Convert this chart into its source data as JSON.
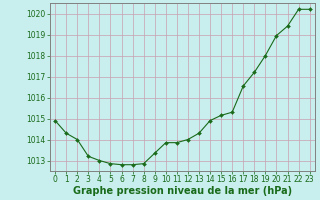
{
  "x": [
    0,
    1,
    2,
    3,
    4,
    5,
    6,
    7,
    8,
    9,
    10,
    11,
    12,
    13,
    14,
    15,
    16,
    17,
    18,
    19,
    20,
    21,
    22,
    23
  ],
  "y": [
    1014.9,
    1014.3,
    1014.0,
    1013.2,
    1013.0,
    1012.85,
    1012.8,
    1012.8,
    1012.85,
    1013.35,
    1013.85,
    1013.85,
    1014.0,
    1014.3,
    1014.9,
    1015.15,
    1015.3,
    1016.55,
    1017.2,
    1018.0,
    1018.95,
    1019.4,
    1020.2,
    1020.2
  ],
  "ylim": [
    1012.5,
    1020.5
  ],
  "xlim": [
    -0.5,
    23.5
  ],
  "yticks": [
    1013,
    1014,
    1015,
    1016,
    1017,
    1018,
    1019,
    1020
  ],
  "xticks": [
    0,
    1,
    2,
    3,
    4,
    5,
    6,
    7,
    8,
    9,
    10,
    11,
    12,
    13,
    14,
    15,
    16,
    17,
    18,
    19,
    20,
    21,
    22,
    23
  ],
  "xlabel": "Graphe pression niveau de la mer (hPa)",
  "line_color": "#1a6b1a",
  "marker_color": "#1a6b1a",
  "bg_color": "#c8eeee",
  "grid_color": "#c8a0b0",
  "border_color": "#808080",
  "xlabel_color": "#1a6b1a",
  "tick_label_color": "#1a6b1a",
  "xlabel_fontsize": 7,
  "tick_fontsize": 5.5
}
